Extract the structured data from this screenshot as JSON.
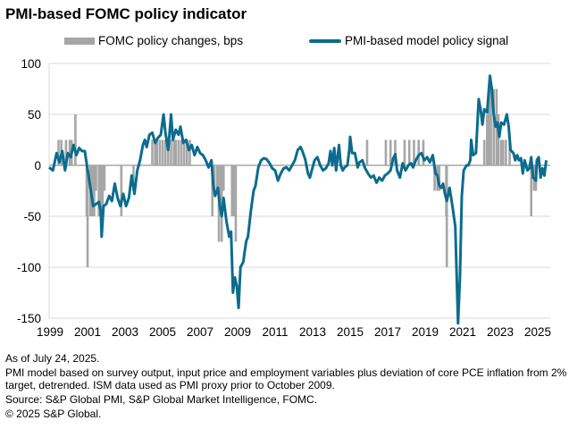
{
  "chart_data": {
    "type": "bar+line",
    "title": "PMI-based FOMC policy indicator",
    "xlabel": "",
    "ylabel": "",
    "ylim": [
      -150,
      100
    ],
    "yticks": [
      100,
      50,
      0,
      -50,
      -100,
      -150
    ],
    "xlim": [
      1999,
      2025.6
    ],
    "xticks": [
      "1999",
      "2001",
      "2003",
      "2005",
      "2007",
      "2009",
      "2011",
      "2013",
      "2015",
      "2017",
      "2019",
      "2021",
      "2023",
      "2025"
    ],
    "grid": true,
    "legend_position": "top",
    "legend": [
      "FOMC policy changes, bps",
      "PMI-based model policy signal"
    ],
    "series": [
      {
        "name": "FOMC policy changes, bps",
        "type": "bar",
        "color": "#a6a6a6",
        "points": [
          [
            1999.5,
            25
          ],
          [
            1999.65,
            25
          ],
          [
            1999.9,
            25
          ],
          [
            2000.1,
            25
          ],
          [
            2000.2,
            25
          ],
          [
            2000.4,
            50
          ],
          [
            2001.0,
            -50
          ],
          [
            2001.05,
            -100
          ],
          [
            2001.2,
            -50
          ],
          [
            2001.3,
            -50
          ],
          [
            2001.4,
            -50
          ],
          [
            2001.5,
            -25
          ],
          [
            2001.65,
            -50
          ],
          [
            2001.75,
            -50
          ],
          [
            2001.85,
            -50
          ],
          [
            2001.95,
            -25
          ],
          [
            2002.85,
            -50
          ],
          [
            2003.5,
            -25
          ],
          [
            2004.5,
            25
          ],
          [
            2004.65,
            25
          ],
          [
            2004.75,
            25
          ],
          [
            2004.9,
            25
          ],
          [
            2005.05,
            25
          ],
          [
            2005.2,
            25
          ],
          [
            2005.35,
            25
          ],
          [
            2005.5,
            25
          ],
          [
            2005.65,
            25
          ],
          [
            2005.75,
            25
          ],
          [
            2005.9,
            25
          ],
          [
            2006.05,
            25
          ],
          [
            2006.2,
            25
          ],
          [
            2006.35,
            25
          ],
          [
            2006.5,
            25
          ],
          [
            2007.7,
            -50
          ],
          [
            2007.8,
            -25
          ],
          [
            2007.95,
            -25
          ],
          [
            2008.05,
            -75
          ],
          [
            2008.1,
            -50
          ],
          [
            2008.2,
            -75
          ],
          [
            2008.3,
            -25
          ],
          [
            2008.75,
            -50
          ],
          [
            2008.85,
            -50
          ],
          [
            2008.95,
            -75
          ],
          [
            2015.95,
            25
          ],
          [
            2016.95,
            25
          ],
          [
            2017.2,
            25
          ],
          [
            2017.45,
            25
          ],
          [
            2017.95,
            25
          ],
          [
            2018.2,
            25
          ],
          [
            2018.45,
            25
          ],
          [
            2018.7,
            25
          ],
          [
            2018.95,
            25
          ],
          [
            2019.55,
            -25
          ],
          [
            2019.7,
            -25
          ],
          [
            2019.8,
            -25
          ],
          [
            2020.17,
            -50
          ],
          [
            2020.2,
            -100
          ],
          [
            2022.2,
            25
          ],
          [
            2022.35,
            50
          ],
          [
            2022.45,
            75
          ],
          [
            2022.55,
            75
          ],
          [
            2022.7,
            75
          ],
          [
            2022.85,
            75
          ],
          [
            2022.95,
            50
          ],
          [
            2023.1,
            25
          ],
          [
            2023.2,
            25
          ],
          [
            2023.35,
            25
          ],
          [
            2023.55,
            25
          ],
          [
            2024.7,
            -50
          ],
          [
            2024.85,
            -25
          ],
          [
            2024.95,
            -25
          ]
        ]
      },
      {
        "name": "PMI-based model policy signal",
        "type": "line",
        "color": "#0b6c8e",
        "points": [
          [
            1999.0,
            -2
          ],
          [
            1999.2,
            -5
          ],
          [
            1999.4,
            12
          ],
          [
            1999.55,
            3
          ],
          [
            1999.7,
            14
          ],
          [
            1999.85,
            -5
          ],
          [
            2000.0,
            12
          ],
          [
            2000.15,
            8
          ],
          [
            2000.3,
            20
          ],
          [
            2000.45,
            10
          ],
          [
            2000.6,
            17
          ],
          [
            2000.75,
            14
          ],
          [
            2000.9,
            14
          ],
          [
            2001.1,
            -10
          ],
          [
            2001.2,
            -22
          ],
          [
            2001.35,
            -40
          ],
          [
            2001.5,
            -38
          ],
          [
            2001.65,
            -36
          ],
          [
            2001.75,
            -45
          ],
          [
            2001.8,
            -70
          ],
          [
            2001.9,
            -40
          ],
          [
            2002.05,
            -38
          ],
          [
            2002.2,
            -30
          ],
          [
            2002.35,
            -35
          ],
          [
            2002.5,
            -18
          ],
          [
            2002.65,
            -32
          ],
          [
            2002.8,
            -40
          ],
          [
            2002.95,
            -28
          ],
          [
            2003.1,
            -40
          ],
          [
            2003.25,
            -32
          ],
          [
            2003.4,
            -10
          ],
          [
            2003.55,
            -28
          ],
          [
            2003.7,
            -5
          ],
          [
            2003.85,
            5
          ],
          [
            2004.0,
            20
          ],
          [
            2004.1,
            25
          ],
          [
            2004.2,
            18
          ],
          [
            2004.35,
            30
          ],
          [
            2004.5,
            32
          ],
          [
            2004.65,
            22
          ],
          [
            2004.8,
            27
          ],
          [
            2004.95,
            30
          ],
          [
            2005.1,
            50
          ],
          [
            2005.2,
            32
          ],
          [
            2005.35,
            15
          ],
          [
            2005.5,
            50
          ],
          [
            2005.6,
            25
          ],
          [
            2005.75,
            35
          ],
          [
            2005.9,
            30
          ],
          [
            2006.0,
            38
          ],
          [
            2006.15,
            22
          ],
          [
            2006.3,
            25
          ],
          [
            2006.45,
            15
          ],
          [
            2006.6,
            20
          ],
          [
            2006.75,
            10
          ],
          [
            2006.9,
            18
          ],
          [
            2007.05,
            12
          ],
          [
            2007.2,
            10
          ],
          [
            2007.35,
            5
          ],
          [
            2007.5,
            -2
          ],
          [
            2007.65,
            5
          ],
          [
            2007.75,
            -20
          ],
          [
            2007.85,
            -30
          ],
          [
            2008.0,
            -22
          ],
          [
            2008.1,
            -40
          ],
          [
            2008.2,
            -50
          ],
          [
            2008.3,
            -32
          ],
          [
            2008.45,
            -55
          ],
          [
            2008.6,
            -70
          ],
          [
            2008.7,
            -65
          ],
          [
            2008.8,
            -125
          ],
          [
            2008.9,
            -110
          ],
          [
            2009.0,
            -118
          ],
          [
            2009.1,
            -140
          ],
          [
            2009.2,
            -100
          ],
          [
            2009.35,
            -95
          ],
          [
            2009.5,
            -75
          ],
          [
            2009.6,
            -70
          ],
          [
            2009.75,
            -45
          ],
          [
            2009.9,
            -25
          ],
          [
            2010.0,
            -20
          ],
          [
            2010.15,
            -2
          ],
          [
            2010.3,
            5
          ],
          [
            2010.45,
            7
          ],
          [
            2010.6,
            6
          ],
          [
            2010.75,
            2
          ],
          [
            2010.9,
            -3
          ],
          [
            2011.05,
            -5
          ],
          [
            2011.2,
            -15
          ],
          [
            2011.35,
            -8
          ],
          [
            2011.5,
            -3
          ],
          [
            2011.65,
            -2
          ],
          [
            2011.8,
            -5
          ],
          [
            2011.95,
            0
          ],
          [
            2012.1,
            5
          ],
          [
            2012.25,
            15
          ],
          [
            2012.4,
            18
          ],
          [
            2012.5,
            14
          ],
          [
            2012.65,
            6
          ],
          [
            2012.8,
            -8
          ],
          [
            2012.9,
            -12
          ],
          [
            2013.0,
            -5
          ],
          [
            2013.15,
            5
          ],
          [
            2013.3,
            8
          ],
          [
            2013.45,
            0
          ],
          [
            2013.6,
            -5
          ],
          [
            2013.75,
            -3
          ],
          [
            2013.9,
            2
          ],
          [
            2014.0,
            14
          ],
          [
            2014.1,
            0
          ],
          [
            2014.2,
            17
          ],
          [
            2014.3,
            -5
          ],
          [
            2014.45,
            20
          ],
          [
            2014.55,
            0
          ],
          [
            2014.65,
            -5
          ],
          [
            2014.75,
            -2
          ],
          [
            2014.9,
            0
          ],
          [
            2015.0,
            15
          ],
          [
            2015.05,
            28
          ],
          [
            2015.15,
            12
          ],
          [
            2015.3,
            12
          ],
          [
            2015.45,
            -2
          ],
          [
            2015.55,
            3
          ],
          [
            2015.7,
            5
          ],
          [
            2015.85,
            -3
          ],
          [
            2016.0,
            -8
          ],
          [
            2016.15,
            -12
          ],
          [
            2016.3,
            -10
          ],
          [
            2016.45,
            -17
          ],
          [
            2016.6,
            -12
          ],
          [
            2016.75,
            -15
          ],
          [
            2016.9,
            -10
          ],
          [
            2017.05,
            -8
          ],
          [
            2017.2,
            -5
          ],
          [
            2017.35,
            7
          ],
          [
            2017.45,
            11
          ],
          [
            2017.55,
            -5
          ],
          [
            2017.7,
            -12
          ],
          [
            2017.85,
            2
          ],
          [
            2018.0,
            -5
          ],
          [
            2018.15,
            0
          ],
          [
            2018.3,
            2
          ],
          [
            2018.4,
            -2
          ],
          [
            2018.55,
            5
          ],
          [
            2018.7,
            10
          ],
          [
            2018.85,
            12
          ],
          [
            2019.0,
            5
          ],
          [
            2019.15,
            8
          ],
          [
            2019.3,
            3
          ],
          [
            2019.45,
            10
          ],
          [
            2019.6,
            -8
          ],
          [
            2019.7,
            -10
          ],
          [
            2019.8,
            -20
          ],
          [
            2019.9,
            -22
          ],
          [
            2020.0,
            -18
          ],
          [
            2020.1,
            -28
          ],
          [
            2020.2,
            -35
          ],
          [
            2020.35,
            -22
          ],
          [
            2020.5,
            -40
          ],
          [
            2020.65,
            -60
          ],
          [
            2020.8,
            -155
          ],
          [
            2020.9,
            -110
          ],
          [
            2021.0,
            -30
          ],
          [
            2021.1,
            -5
          ],
          [
            2021.25,
            0
          ],
          [
            2021.35,
            0
          ],
          [
            2021.45,
            5
          ],
          [
            2021.5,
            25
          ],
          [
            2021.6,
            10
          ],
          [
            2021.75,
            12
          ],
          [
            2021.9,
            65
          ],
          [
            2022.0,
            55
          ],
          [
            2022.1,
            40
          ],
          [
            2022.2,
            55
          ],
          [
            2022.35,
            52
          ],
          [
            2022.5,
            88
          ],
          [
            2022.6,
            75
          ],
          [
            2022.7,
            50
          ],
          [
            2022.8,
            38
          ],
          [
            2022.9,
            42
          ],
          [
            2023.0,
            28
          ],
          [
            2023.1,
            42
          ],
          [
            2023.25,
            40
          ],
          [
            2023.4,
            50
          ],
          [
            2023.5,
            38
          ],
          [
            2023.6,
            15
          ],
          [
            2023.75,
            12
          ],
          [
            2023.85,
            5
          ],
          [
            2023.95,
            10
          ],
          [
            2024.05,
            5
          ],
          [
            2024.15,
            7
          ],
          [
            2024.25,
            -8
          ],
          [
            2024.35,
            5
          ],
          [
            2024.5,
            -5
          ],
          [
            2024.6,
            -3
          ],
          [
            2024.7,
            8
          ],
          [
            2024.8,
            -12
          ],
          [
            2024.95,
            -15
          ],
          [
            2025.0,
            5
          ],
          [
            2025.1,
            8
          ],
          [
            2025.2,
            -12
          ],
          [
            2025.3,
            -3
          ],
          [
            2025.4,
            -10
          ],
          [
            2025.5,
            5
          ]
        ]
      }
    ]
  },
  "footnotes": {
    "as_of": "As of July 24, 2025.",
    "method": "PMI model based on survey output, input price and employment variables plus deviation of core PCE inflation from 2% target, detrended.  ISM data used as PMI proxy prior to October 2009.",
    "source": "Source: S&P Global PMI, S&P Global Market Intelligence, FOMC.",
    "copyright": "© 2025 S&P Global."
  }
}
